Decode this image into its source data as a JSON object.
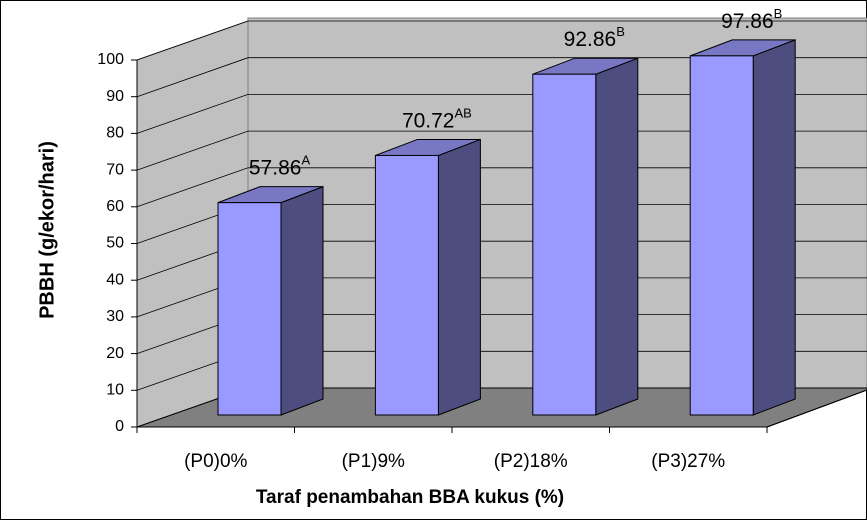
{
  "chart_data": {
    "type": "bar3d",
    "categories": [
      "(P0)0%",
      "(P1)9%",
      "(P2)18%",
      "(P3)27%"
    ],
    "values": [
      57.86,
      70.72,
      92.86,
      97.86
    ],
    "value_labels": [
      "57.86",
      "70.72",
      "92.86",
      "97.86"
    ],
    "significance": [
      "A",
      "AB",
      "B",
      "B"
    ],
    "color": "#9999ff",
    "ylabel": "PBBH (g/ekor/hari)",
    "xlabel": "Taraf penambahan BBA kukus (%)",
    "ylim": [
      0,
      100
    ],
    "yticks": [
      0,
      10,
      20,
      30,
      40,
      50,
      60,
      70,
      80,
      90,
      100
    ],
    "grid": true
  }
}
